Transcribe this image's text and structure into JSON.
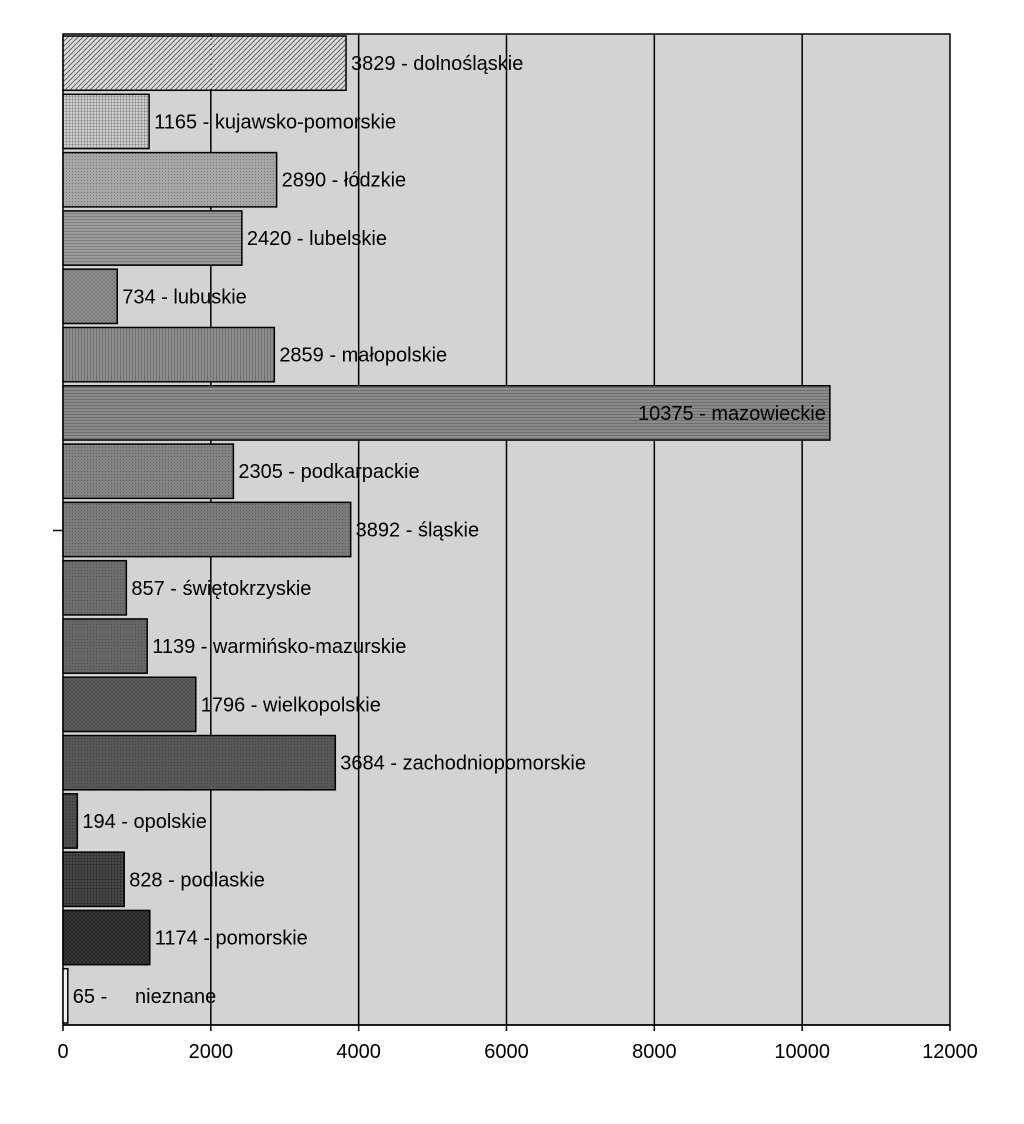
{
  "chart_data": {
    "type": "bar",
    "orientation": "horizontal",
    "categories": [
      "dolnośląskie",
      "kujawsko-pomorskie",
      "łódzkie",
      "lubelskie",
      "lubuskie",
      "małopolskie",
      "mazowieckie",
      "podkarpackie",
      "śląskie",
      "świętokrzyskie",
      "warmińsko-mazurskie",
      "wielkopolskie",
      "zachodniopomorskie",
      "opolskie",
      "podlaskie",
      "pomorskie",
      "nieznane"
    ],
    "values": [
      3829,
      1165,
      2890,
      2420,
      734,
      2859,
      10375,
      2305,
      3892,
      857,
      1139,
      1796,
      3684,
      194,
      828,
      1174,
      65
    ],
    "data_labels": [
      "3829 - dolnośląskie",
      "1165 - kujawsko-pomorskie",
      "2890 - łódzkie",
      "2420 - lubelskie",
      "734 - lubuskie",
      "2859 - małopolskie",
      "10375 - mazowieckie",
      "2305 - podkarpackie",
      "3892 - śląskie",
      "857 - świętokrzyskie",
      "1139 - warmińsko-mazurskie",
      "1796 - wielkopolskie",
      "3684 - zachodniopomorskie",
      "194 - opolskie",
      "828 - podlaskie",
      "1174 - pomorskie",
      "65 -     nieznane"
    ],
    "x_ticks": [
      "0",
      "2000",
      "4000",
      "6000",
      "8000",
      "10000",
      "12000"
    ],
    "xlim": [
      0,
      12000
    ],
    "grid": "vertical",
    "legend": "none",
    "title": "",
    "xlabel": "",
    "ylabel": "",
    "plot_background": "#d3d3d3",
    "bar_colors": [
      "#e0e0e0",
      "#cfcfcf",
      "#a6a6a6",
      "#9c9c9c",
      "#939393",
      "#8c8c8c",
      "#8a8a8a",
      "#838383",
      "#7b7b7b",
      "#6e6e6e",
      "#676767",
      "#606060",
      "#585858",
      "#4d4d4d",
      "#484848",
      "#3f3f3f",
      "#f0f0f0"
    ],
    "bar_patterns": [
      "diag-dense",
      "grid-fine",
      "dots",
      "hlines",
      "crosshatch",
      "vlines",
      "hlines",
      "dots",
      "dots",
      "dots",
      "dots",
      "crosshatch",
      "dots",
      "dots",
      "grid-fine",
      "diag-cross",
      "solid"
    ]
  }
}
